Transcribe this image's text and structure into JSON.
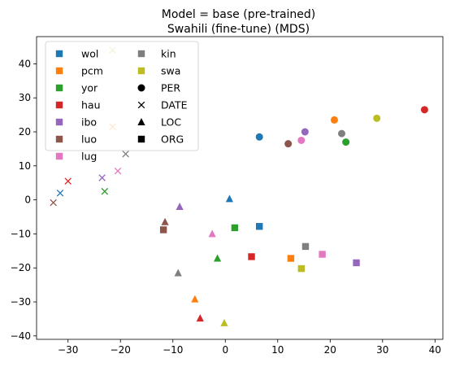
{
  "chart_data": {
    "type": "scatter",
    "title": "Model = base (pre-trained)",
    "subtitle": "Swahili (fine-tune) (MDS)",
    "xlabel": "",
    "ylabel": "",
    "xlim": [
      -36,
      41.5
    ],
    "ylim": [
      -41,
      48
    ],
    "xticks": [
      -30,
      -20,
      -10,
      0,
      10,
      20,
      30,
      40
    ],
    "yticks": [
      -40,
      -30,
      -20,
      -10,
      0,
      10,
      20,
      30,
      40
    ],
    "grid": false,
    "legend_position": "top-left",
    "languages": [
      {
        "name": "wol",
        "color": "#1f77b4"
      },
      {
        "name": "pcm",
        "color": "#ff7f0e"
      },
      {
        "name": "yor",
        "color": "#2ca02c"
      },
      {
        "name": "hau",
        "color": "#d62728"
      },
      {
        "name": "ibo",
        "color": "#9467bd"
      },
      {
        "name": "luo",
        "color": "#8c564b"
      },
      {
        "name": "lug",
        "color": "#e377c2"
      },
      {
        "name": "kin",
        "color": "#7f7f7f"
      },
      {
        "name": "swa",
        "color": "#bcbd22"
      }
    ],
    "entity_types": [
      {
        "name": "PER",
        "marker": "circle"
      },
      {
        "name": "DATE",
        "marker": "x"
      },
      {
        "name": "LOC",
        "marker": "triangle"
      },
      {
        "name": "ORG",
        "marker": "square"
      }
    ],
    "points": [
      {
        "lang": "wol",
        "entity": "PER",
        "x": 6.5,
        "y": 18.5
      },
      {
        "lang": "pcm",
        "entity": "PER",
        "x": 20.8,
        "y": 23.5
      },
      {
        "lang": "yor",
        "entity": "PER",
        "x": 23.0,
        "y": 17.0
      },
      {
        "lang": "hau",
        "entity": "PER",
        "x": 38.0,
        "y": 26.5
      },
      {
        "lang": "ibo",
        "entity": "PER",
        "x": 15.2,
        "y": 20.0
      },
      {
        "lang": "luo",
        "entity": "PER",
        "x": 12.0,
        "y": 16.5
      },
      {
        "lang": "lug",
        "entity": "PER",
        "x": 14.5,
        "y": 17.5
      },
      {
        "lang": "kin",
        "entity": "PER",
        "x": 22.2,
        "y": 19.5
      },
      {
        "lang": "swa",
        "entity": "PER",
        "x": 28.9,
        "y": 24.0
      },
      {
        "lang": "wol",
        "entity": "DATE",
        "x": -31.5,
        "y": 2.0
      },
      {
        "lang": "pcm",
        "entity": "DATE",
        "x": -21.5,
        "y": 21.5
      },
      {
        "lang": "yor",
        "entity": "DATE",
        "x": -23.0,
        "y": 2.5
      },
      {
        "lang": "hau",
        "entity": "DATE",
        "x": -30.0,
        "y": 5.5
      },
      {
        "lang": "ibo",
        "entity": "DATE",
        "x": -23.5,
        "y": 6.5
      },
      {
        "lang": "luo",
        "entity": "DATE",
        "x": -32.8,
        "y": -0.8
      },
      {
        "lang": "lug",
        "entity": "DATE",
        "x": -20.5,
        "y": 8.5
      },
      {
        "lang": "kin",
        "entity": "DATE",
        "x": -19.0,
        "y": 13.5
      },
      {
        "lang": "swa",
        "entity": "DATE",
        "x": -21.5,
        "y": 44.0
      },
      {
        "lang": "wol",
        "entity": "LOC",
        "x": 0.8,
        "y": 0.3
      },
      {
        "lang": "pcm",
        "entity": "LOC",
        "x": -5.8,
        "y": -29.2
      },
      {
        "lang": "yor",
        "entity": "LOC",
        "x": -1.5,
        "y": -17.2
      },
      {
        "lang": "hau",
        "entity": "LOC",
        "x": -4.8,
        "y": -34.8
      },
      {
        "lang": "ibo",
        "entity": "LOC",
        "x": -8.7,
        "y": -2.0
      },
      {
        "lang": "luo",
        "entity": "LOC",
        "x": -11.5,
        "y": -6.5
      },
      {
        "lang": "lug",
        "entity": "LOC",
        "x": -2.5,
        "y": -10.0
      },
      {
        "lang": "kin",
        "entity": "LOC",
        "x": -9.0,
        "y": -21.5
      },
      {
        "lang": "swa",
        "entity": "LOC",
        "x": -0.2,
        "y": -36.2
      },
      {
        "lang": "wol",
        "entity": "ORG",
        "x": 6.5,
        "y": -7.8
      },
      {
        "lang": "pcm",
        "entity": "ORG",
        "x": 12.5,
        "y": -17.2
      },
      {
        "lang": "yor",
        "entity": "ORG",
        "x": 1.8,
        "y": -8.2
      },
      {
        "lang": "hau",
        "entity": "ORG",
        "x": 5.0,
        "y": -16.7
      },
      {
        "lang": "ibo",
        "entity": "ORG",
        "x": 25.0,
        "y": -18.5
      },
      {
        "lang": "luo",
        "entity": "ORG",
        "x": -11.8,
        "y": -8.8
      },
      {
        "lang": "lug",
        "entity": "ORG",
        "x": 18.5,
        "y": -16.0
      },
      {
        "lang": "kin",
        "entity": "ORG",
        "x": 15.3,
        "y": -13.7
      },
      {
        "lang": "swa",
        "entity": "ORG",
        "x": 14.5,
        "y": -20.2
      }
    ]
  }
}
